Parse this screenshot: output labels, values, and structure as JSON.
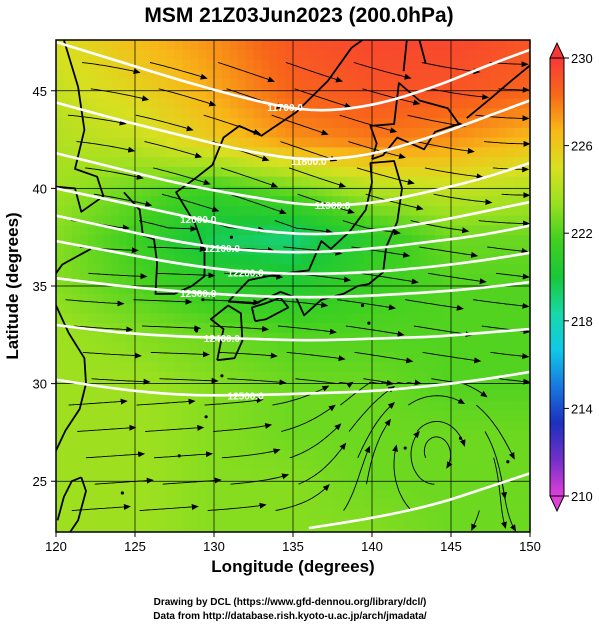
{
  "chart_data": {
    "type": "heatmap",
    "title": "MSM 21Z03Jun2023 (200.0hPa)",
    "xlabel": "Longitude (degrees)",
    "ylabel": "Latitude  (degrees)",
    "xlim": [
      120,
      150
    ],
    "ylim": [
      22.4,
      47.6
    ],
    "xticks": [
      120,
      125,
      130,
      135,
      140,
      145,
      150
    ],
    "yticks": [
      25,
      30,
      35,
      40,
      45
    ],
    "colorbar": {
      "range": [
        210,
        230
      ],
      "ticks": [
        210,
        214,
        218,
        222,
        226,
        230
      ],
      "colors": [
        "#e040d8",
        "#7030c8",
        "#1c30c0",
        "#1878e0",
        "#10c8e8",
        "#18d8a8",
        "#18c838",
        "#40d020",
        "#98e020",
        "#d8e020",
        "#f8b818",
        "#f86818",
        "#f83838"
      ]
    },
    "temperature_field_K": {
      "lon": [
        120,
        125,
        130,
        135,
        140,
        145,
        150
      ],
      "lat": [
        47.6,
        45,
        42.5,
        40,
        37.5,
        35,
        32.5,
        30,
        27.5,
        25,
        22.4
      ],
      "values": [
        [
          225.0,
          226.5,
          227.5,
          229.0,
          229.5,
          229.5,
          229.0
        ],
        [
          224.5,
          225.5,
          227.0,
          228.5,
          229.0,
          229.0,
          228.5
        ],
        [
          224.0,
          224.5,
          226.0,
          227.5,
          228.0,
          227.5,
          226.5
        ],
        [
          223.5,
          222.5,
          221.5,
          222.5,
          224.0,
          224.5,
          224.0
        ],
        [
          223.0,
          221.5,
          219.5,
          219.0,
          221.0,
          222.5,
          222.5
        ],
        [
          223.0,
          222.0,
          221.0,
          220.5,
          221.5,
          222.0,
          222.0
        ],
        [
          223.5,
          223.0,
          222.5,
          222.0,
          222.0,
          222.0,
          222.0
        ],
        [
          223.5,
          223.5,
          223.0,
          222.5,
          222.5,
          222.0,
          222.0
        ],
        [
          223.5,
          223.5,
          223.0,
          222.5,
          222.5,
          222.5,
          222.5
        ],
        [
          223.5,
          223.5,
          223.0,
          223.0,
          222.5,
          222.5,
          222.5
        ],
        [
          223.5,
          223.5,
          223.0,
          223.0,
          223.0,
          222.5,
          222.5
        ]
      ]
    },
    "height_contours_m": [
      {
        "label": "11700.0",
        "lon": [
          120,
          124,
          128,
          132,
          136,
          140,
          144,
          147,
          150
        ],
        "lat": [
          47.5,
          46.5,
          45.5,
          44.6,
          43.9,
          44.2,
          45.2,
          46.2,
          47.1
        ]
      },
      {
        "label": "11800.0",
        "lon": [
          120,
          124,
          128,
          132,
          136,
          140,
          144,
          147,
          150
        ],
        "lat": [
          44.4,
          43.5,
          42.7,
          41.9,
          41.4,
          41.7,
          42.7,
          43.6,
          44.5
        ]
      },
      {
        "label": "11900.0",
        "lon": [
          120,
          124,
          128,
          132,
          136,
          140,
          144,
          147,
          150
        ],
        "lat": [
          41.8,
          41.0,
          40.2,
          39.6,
          39.1,
          39.2,
          39.9,
          40.5,
          41.3
        ]
      },
      {
        "label": "12000.0",
        "lon": [
          120,
          124,
          128,
          132,
          136,
          140,
          144,
          147,
          150
        ],
        "lat": [
          40.0,
          39.3,
          38.6,
          37.9,
          37.6,
          37.8,
          38.3,
          38.8,
          39.3
        ]
      },
      {
        "label": "12100.0",
        "lon": [
          120,
          124,
          128,
          132,
          136,
          140,
          144,
          147,
          150
        ],
        "lat": [
          38.6,
          37.9,
          37.2,
          36.8,
          36.7,
          36.9,
          37.3,
          37.6,
          38.1
        ]
      },
      {
        "label": "12200.0",
        "lon": [
          120,
          124,
          128,
          132,
          136,
          140,
          144,
          147,
          150
        ],
        "lat": [
          37.3,
          36.7,
          36.1,
          35.7,
          35.6,
          35.7,
          36.0,
          36.3,
          36.7
        ]
      },
      {
        "label": "12300.0",
        "lon": [
          120,
          124,
          128,
          132,
          136,
          140,
          144,
          147,
          150
        ],
        "lat": [
          35.4,
          35.0,
          34.7,
          34.5,
          34.4,
          34.5,
          34.7,
          34.9,
          35.2
        ]
      },
      {
        "label": "12400.0",
        "lon": [
          120,
          124,
          128,
          132,
          136,
          140,
          144,
          147,
          150
        ],
        "lat": [
          33.0,
          32.6,
          32.4,
          32.3,
          32.2,
          32.3,
          32.4,
          32.6,
          32.8
        ]
      },
      {
        "label": "12500.0",
        "lon": [
          120,
          124,
          128,
          132,
          136,
          140,
          144,
          147,
          150
        ],
        "lat": [
          30.2,
          29.7,
          29.4,
          29.4,
          29.5,
          29.6,
          29.9,
          30.2,
          30.6
        ]
      },
      {
        "label": "",
        "lon": [
          136,
          140,
          144,
          147,
          150
        ],
        "lat": [
          22.6,
          23.1,
          23.8,
          24.6,
          25.4
        ]
      }
    ],
    "wind_streamlines": "black streamlines with arrowheads",
    "map": "coastlines of East Asia and Japan, 5-degree lat/lon grid"
  },
  "credits": {
    "line1": "Drawing by DCL (https://www.gfd-dennou.org/library/dcl/)",
    "line2": "Data from http://database.rish.kyoto-u.ac.jp/arch/jmadata/"
  }
}
